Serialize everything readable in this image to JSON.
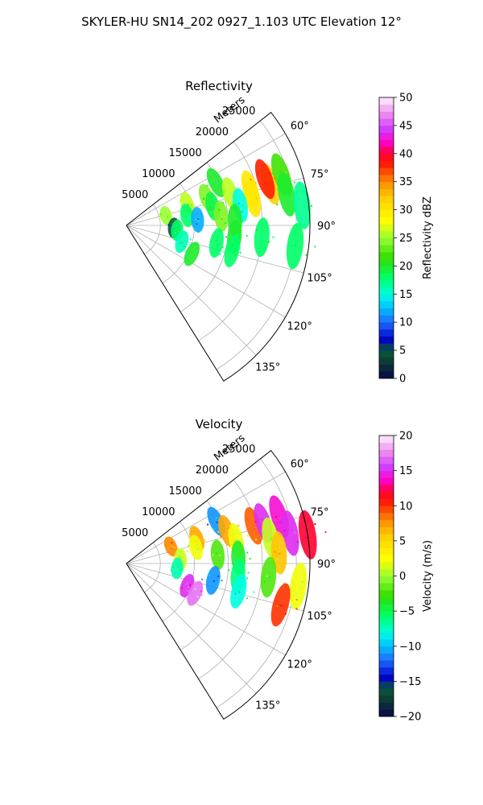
{
  "figure": {
    "title": "SKYLER-HU  SN14_202  0927_1.103 UTC Elevation 12°"
  },
  "chart_data": [
    {
      "type": "heatmap",
      "title": "Reflectivity",
      "range_label": "Meters",
      "range_ticks": [
        5000,
        10000,
        15000,
        20000,
        25000
      ],
      "range_tick_labels": [
        "5000",
        "10000",
        "15000",
        "20000",
        "25000"
      ],
      "azimuth_ticks": [
        60,
        75,
        90,
        105,
        120,
        135
      ],
      "azimuth_tick_labels": [
        "60°",
        "75°",
        "90°",
        "105°",
        "120°",
        "135°"
      ],
      "azimuth_range": [
        52,
        148
      ],
      "range_max": 27000,
      "grid": true,
      "colorbar": {
        "label": "Reflectivity dBZ",
        "range": [
          0,
          50
        ],
        "ticks": [
          0,
          5,
          10,
          15,
          20,
          25,
          30,
          35,
          40,
          45,
          50
        ],
        "tick_labels": [
          "0",
          "5",
          "10",
          "15",
          "20",
          "25",
          "30",
          "35",
          "40",
          "45",
          "50"
        ]
      },
      "echoes": [
        {
          "az": 64.5,
          "r": 14600,
          "value": 20
        },
        {
          "az": 70.5,
          "r": 9500,
          "value": 26
        },
        {
          "az": 71.0,
          "r": 12500,
          "value": 24
        },
        {
          "az": 73.0,
          "r": 16000,
          "value": 26
        },
        {
          "az": 73.5,
          "r": 19000,
          "value": 30
        },
        {
          "az": 74.0,
          "r": 22000,
          "value": 32
        },
        {
          "az": 72.0,
          "r": 24000,
          "value": 22
        },
        {
          "az": 76.0,
          "r": 6000,
          "value": 25
        },
        {
          "az": 77.5,
          "r": 13000,
          "value": 19
        },
        {
          "az": 78.0,
          "r": 19000,
          "value": 30
        },
        {
          "az": 79.0,
          "r": 24000,
          "value": 20
        },
        {
          "az": 80.5,
          "r": 9000,
          "value": 18
        },
        {
          "az": 80.0,
          "r": 17000,
          "value": 15
        },
        {
          "az": 83.5,
          "r": 26000,
          "value": 17
        },
        {
          "az": 84.5,
          "r": 14000,
          "value": 24
        },
        {
          "az": 85.5,
          "r": 10500,
          "value": 12
        },
        {
          "az": 87.5,
          "r": 16000,
          "value": 20
        },
        {
          "az": 93.0,
          "r": 7000,
          "value": 5
        },
        {
          "az": 95.5,
          "r": 7500,
          "value": 18
        },
        {
          "az": 96.0,
          "r": 16000,
          "value": 20
        },
        {
          "az": 95.0,
          "r": 20000,
          "value": 18
        },
        {
          "az": 97.0,
          "r": 25000,
          "value": 18
        },
        {
          "az": 101.0,
          "r": 13500,
          "value": 18
        },
        {
          "az": 103.5,
          "r": 16000,
          "value": 18
        },
        {
          "az": 106.5,
          "r": 8500,
          "value": 16
        },
        {
          "az": 113.5,
          "r": 10500,
          "value": 20
        },
        {
          "az": 71.5,
          "r": 21500,
          "value": 38
        }
      ]
    },
    {
      "type": "heatmap",
      "title": "Velocity",
      "range_label": "Meters",
      "range_ticks": [
        5000,
        10000,
        15000,
        20000,
        25000
      ],
      "range_tick_labels": [
        "5000",
        "10000",
        "15000",
        "20000",
        "25000"
      ],
      "azimuth_ticks": [
        60,
        75,
        90,
        105,
        120,
        135
      ],
      "azimuth_tick_labels": [
        "60°",
        "75°",
        "90°",
        "105°",
        "120°",
        "135°"
      ],
      "azimuth_range": [
        52,
        148
      ],
      "range_max": 27000,
      "grid": true,
      "colorbar": {
        "label": "Velocity (m/s)",
        "range": [
          -20,
          20
        ],
        "ticks": [
          -20,
          -15,
          -10,
          -5,
          0,
          5,
          10,
          15,
          20
        ],
        "tick_labels": [
          "−20",
          "−15",
          "−10",
          "−5",
          "0",
          "5",
          "10",
          "15",
          "20"
        ]
      },
      "echoes": [
        {
          "az": 65.0,
          "r": 14600,
          "value": -11
        },
        {
          "az": 69.0,
          "r": 7000,
          "value": 8
        },
        {
          "az": 70.5,
          "r": 11000,
          "value": 7
        },
        {
          "az": 72.0,
          "r": 15500,
          "value": 7
        },
        {
          "az": 73.5,
          "r": 19500,
          "value": 9
        },
        {
          "az": 73.0,
          "r": 23500,
          "value": 14
        },
        {
          "az": 73.5,
          "r": 21000,
          "value": 15
        },
        {
          "az": 77.0,
          "r": 10500,
          "value": 2
        },
        {
          "az": 78.0,
          "r": 16500,
          "value": 2
        },
        {
          "az": 79.5,
          "r": 24500,
          "value": 15
        },
        {
          "az": 80.0,
          "r": 21500,
          "value": 1
        },
        {
          "az": 81.0,
          "r": 27000,
          "value": 12
        },
        {
          "az": 84.5,
          "r": 13500,
          "value": -2
        },
        {
          "az": 85.5,
          "r": 8000,
          "value": 1
        },
        {
          "az": 87.0,
          "r": 16500,
          "value": -4
        },
        {
          "az": 86.0,
          "r": 22500,
          "value": 6
        },
        {
          "az": 95.5,
          "r": 7500,
          "value": -7
        },
        {
          "az": 96.0,
          "r": 16500,
          "value": -6
        },
        {
          "az": 95.5,
          "r": 21000,
          "value": -2
        },
        {
          "az": 97.5,
          "r": 25500,
          "value": 2
        },
        {
          "az": 101.0,
          "r": 13000,
          "value": -11
        },
        {
          "az": 104.0,
          "r": 17000,
          "value": -8
        },
        {
          "az": 110.0,
          "r": 9500,
          "value": 15
        },
        {
          "az": 113.5,
          "r": 11000,
          "value": 17
        },
        {
          "az": 105.0,
          "r": 23500,
          "value": 10
        }
      ]
    }
  ]
}
